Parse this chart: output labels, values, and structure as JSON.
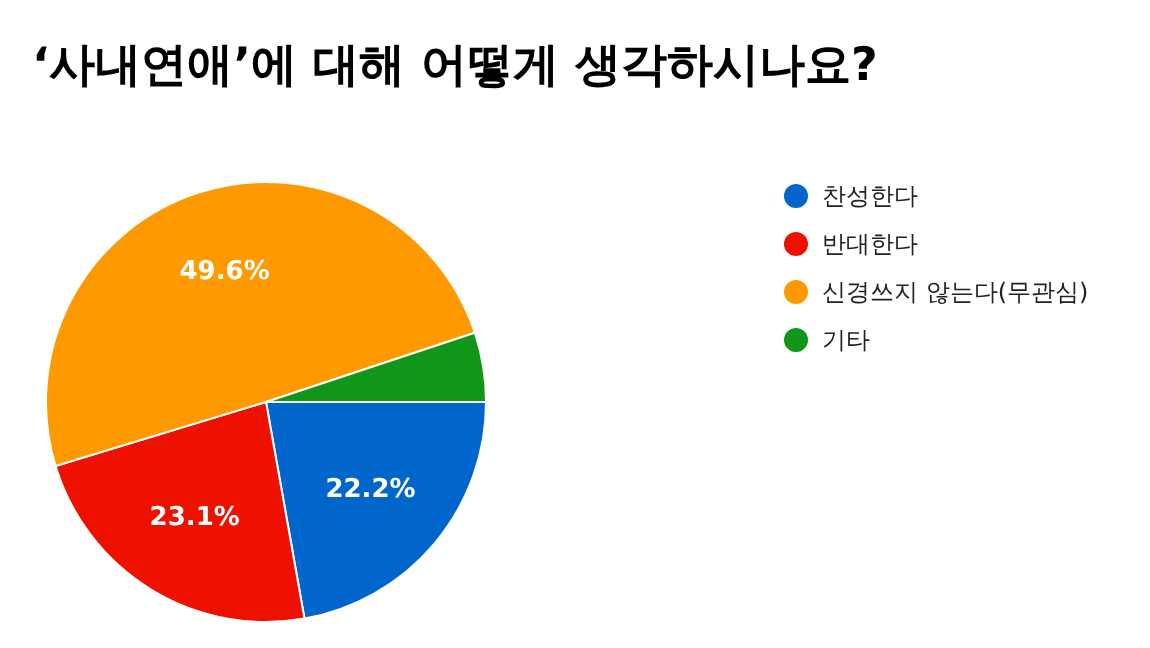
{
  "chart_data": {
    "type": "pie",
    "title": "‘사내연애’에 대해 어떻게 생각하시나요?",
    "categories": [
      "찬성한다",
      "반대한다",
      "신경쓰지 않는다(무관심)",
      "기타"
    ],
    "values": [
      22.2,
      23.1,
      49.6,
      5.1
    ],
    "colors": [
      "#0066cc",
      "#ee1100",
      "#ff9900",
      "#109618"
    ],
    "value_labels": [
      "22.2%",
      "23.1%",
      "49.6%",
      null
    ],
    "legend": "right"
  }
}
